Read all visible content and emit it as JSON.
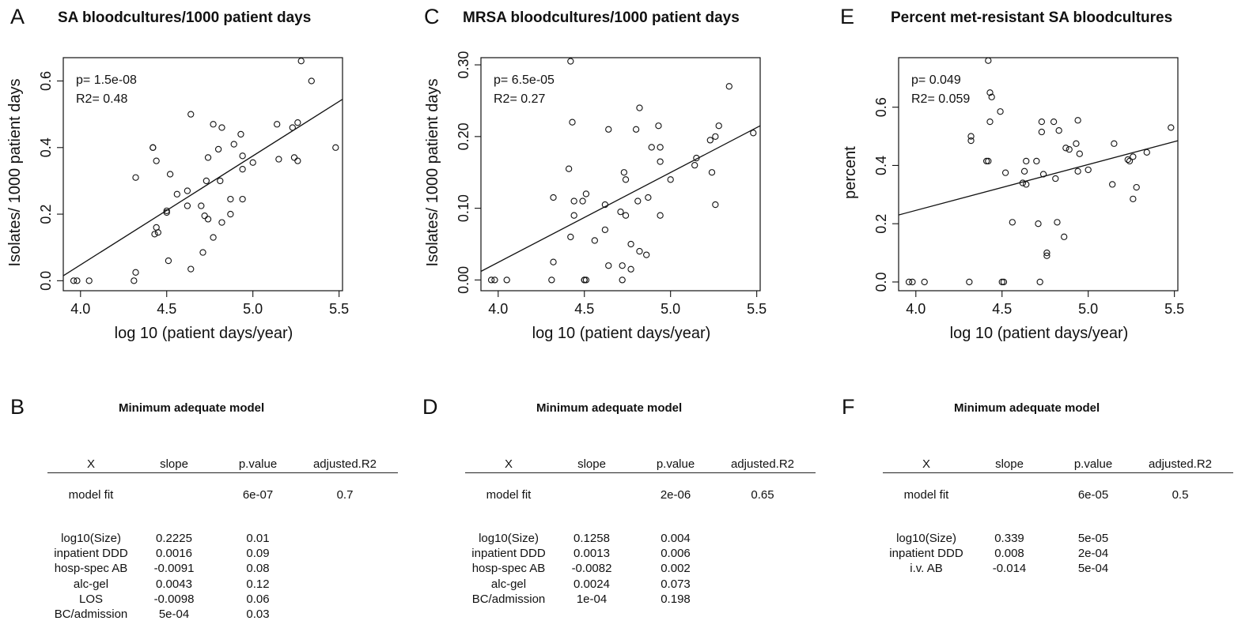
{
  "chart_data": [
    {
      "type": "scatter",
      "letter": "A",
      "title": "SA bloodcultures/1000 patient days",
      "xlabel": "log 10 (patient days/year)",
      "ylabel": "Isolates/ 1000 patient days",
      "xlim": [
        3.9,
        5.52
      ],
      "ylim": [
        -0.03,
        0.67
      ],
      "xticks": [
        "4.0",
        "4.5",
        "5.0",
        "5.5"
      ],
      "yticks": [
        "0.0",
        "0.2",
        "0.4",
        "0.6"
      ],
      "stats": [
        "p= 1.5e-08",
        "R2= 0.48"
      ],
      "line": [
        [
          3.9,
          0.015
        ],
        [
          5.52,
          0.545
        ]
      ],
      "points": [
        [
          3.96,
          0.0
        ],
        [
          3.98,
          0.0
        ],
        [
          4.05,
          0.0
        ],
        [
          4.31,
          0.0
        ],
        [
          4.32,
          0.025
        ],
        [
          4.32,
          0.31
        ],
        [
          4.42,
          0.4
        ],
        [
          4.42,
          0.4
        ],
        [
          4.43,
          0.14
        ],
        [
          4.44,
          0.36
        ],
        [
          4.44,
          0.16
        ],
        [
          4.45,
          0.145
        ],
        [
          4.5,
          0.205
        ],
        [
          4.5,
          0.21
        ],
        [
          4.51,
          0.06
        ],
        [
          4.52,
          0.32
        ],
        [
          4.56,
          0.26
        ],
        [
          4.62,
          0.225
        ],
        [
          4.62,
          0.27
        ],
        [
          4.64,
          0.5
        ],
        [
          4.64,
          0.035
        ],
        [
          4.7,
          0.225
        ],
        [
          4.71,
          0.085
        ],
        [
          4.72,
          0.195
        ],
        [
          4.73,
          0.3
        ],
        [
          4.74,
          0.185
        ],
        [
          4.74,
          0.37
        ],
        [
          4.77,
          0.13
        ],
        [
          4.77,
          0.47
        ],
        [
          4.8,
          0.395
        ],
        [
          4.81,
          0.3
        ],
        [
          4.82,
          0.175
        ],
        [
          4.82,
          0.46
        ],
        [
          4.87,
          0.2
        ],
        [
          4.87,
          0.245
        ],
        [
          4.89,
          0.41
        ],
        [
          4.93,
          0.44
        ],
        [
          4.94,
          0.375
        ],
        [
          4.94,
          0.335
        ],
        [
          4.94,
          0.245
        ],
        [
          5.0,
          0.355
        ],
        [
          5.14,
          0.47
        ],
        [
          5.15,
          0.365
        ],
        [
          5.23,
          0.46
        ],
        [
          5.24,
          0.37
        ],
        [
          5.26,
          0.36
        ],
        [
          5.26,
          0.475
        ],
        [
          5.28,
          0.66
        ],
        [
          5.34,
          0.6
        ],
        [
          5.48,
          0.4
        ]
      ]
    },
    {
      "type": "scatter",
      "letter": "C",
      "title": "MRSA bloodcultures/1000 patient days",
      "xlabel": "log 10 (patient days/year)",
      "ylabel": "Isolates/ 1000 patient days",
      "xlim": [
        3.9,
        5.52
      ],
      "ylim": [
        -0.015,
        0.31
      ],
      "xticks": [
        "4.0",
        "4.5",
        "5.0",
        "5.5"
      ],
      "yticks": [
        "0.00",
        "0.10",
        "0.20",
        "0.30"
      ],
      "stats": [
        "p=  6.5e-05",
        "R2=  0.27"
      ],
      "line": [
        [
          3.9,
          0.012
        ],
        [
          5.52,
          0.215
        ]
      ],
      "points": [
        [
          3.96,
          0.0
        ],
        [
          3.98,
          0.0
        ],
        [
          4.05,
          0.0
        ],
        [
          4.31,
          0.0
        ],
        [
          4.32,
          0.025
        ],
        [
          4.32,
          0.115
        ],
        [
          4.41,
          0.155
        ],
        [
          4.42,
          0.305
        ],
        [
          4.42,
          0.06
        ],
        [
          4.43,
          0.22
        ],
        [
          4.44,
          0.11
        ],
        [
          4.44,
          0.09
        ],
        [
          4.49,
          0.11
        ],
        [
          4.5,
          0.0
        ],
        [
          4.5,
          0.0
        ],
        [
          4.51,
          0.12
        ],
        [
          4.51,
          0.0
        ],
        [
          4.56,
          0.055
        ],
        [
          4.62,
          0.07
        ],
        [
          4.62,
          0.105
        ],
        [
          4.64,
          0.21
        ],
        [
          4.64,
          0.02
        ],
        [
          4.71,
          0.095
        ],
        [
          4.72,
          0.0
        ],
        [
          4.72,
          0.02
        ],
        [
          4.73,
          0.15
        ],
        [
          4.74,
          0.09
        ],
        [
          4.74,
          0.14
        ],
        [
          4.77,
          0.05
        ],
        [
          4.77,
          0.015
        ],
        [
          4.8,
          0.21
        ],
        [
          4.81,
          0.11
        ],
        [
          4.82,
          0.04
        ],
        [
          4.82,
          0.24
        ],
        [
          4.86,
          0.035
        ],
        [
          4.87,
          0.115
        ],
        [
          4.89,
          0.185
        ],
        [
          4.93,
          0.215
        ],
        [
          4.94,
          0.185
        ],
        [
          4.94,
          0.165
        ],
        [
          4.94,
          0.09
        ],
        [
          5.0,
          0.14
        ],
        [
          5.14,
          0.16
        ],
        [
          5.15,
          0.17
        ],
        [
          5.23,
          0.195
        ],
        [
          5.24,
          0.15
        ],
        [
          5.26,
          0.105
        ],
        [
          5.26,
          0.2
        ],
        [
          5.28,
          0.215
        ],
        [
          5.34,
          0.27
        ],
        [
          5.48,
          0.205
        ]
      ]
    },
    {
      "type": "scatter",
      "letter": "E",
      "title": "Percent met-resistant SA bloodcultures",
      "xlabel": "log 10 (patient days/year)",
      "ylabel": "percent",
      "xlim": [
        3.9,
        5.52
      ],
      "ylim": [
        -0.03,
        0.77
      ],
      "xticks": [
        "4.0",
        "4.5",
        "5.0",
        "5.5"
      ],
      "yticks": [
        "0.0",
        "0.2",
        "0.4",
        "0.6"
      ],
      "stats": [
        "p=  0.049",
        "R2=  0.059"
      ],
      "line": [
        [
          3.9,
          0.23
        ],
        [
          5.52,
          0.485
        ]
      ],
      "points": [
        [
          3.96,
          0.0
        ],
        [
          3.98,
          0.0
        ],
        [
          4.05,
          0.0
        ],
        [
          4.31,
          0.0
        ],
        [
          4.32,
          0.5
        ],
        [
          4.32,
          0.485
        ],
        [
          4.41,
          0.415
        ],
        [
          4.42,
          0.415
        ],
        [
          4.42,
          0.76
        ],
        [
          4.43,
          0.55
        ],
        [
          4.43,
          0.65
        ],
        [
          4.44,
          0.635
        ],
        [
          4.49,
          0.585
        ],
        [
          4.5,
          0.0
        ],
        [
          4.51,
          0.0
        ],
        [
          4.52,
          0.375
        ],
        [
          4.56,
          0.205
        ],
        [
          4.62,
          0.34
        ],
        [
          4.63,
          0.38
        ],
        [
          4.64,
          0.415
        ],
        [
          4.64,
          0.335
        ],
        [
          4.7,
          0.415
        ],
        [
          4.71,
          0.2
        ],
        [
          4.72,
          0.0
        ],
        [
          4.73,
          0.515
        ],
        [
          4.73,
          0.55
        ],
        [
          4.74,
          0.37
        ],
        [
          4.76,
          0.1
        ],
        [
          4.76,
          0.09
        ],
        [
          4.8,
          0.55
        ],
        [
          4.81,
          0.355
        ],
        [
          4.82,
          0.205
        ],
        [
          4.83,
          0.52
        ],
        [
          4.86,
          0.155
        ],
        [
          4.87,
          0.46
        ],
        [
          4.89,
          0.455
        ],
        [
          4.93,
          0.475
        ],
        [
          4.94,
          0.555
        ],
        [
          4.94,
          0.38
        ],
        [
          4.95,
          0.44
        ],
        [
          5.0,
          0.385
        ],
        [
          5.14,
          0.335
        ],
        [
          5.15,
          0.475
        ],
        [
          5.23,
          0.42
        ],
        [
          5.24,
          0.415
        ],
        [
          5.26,
          0.285
        ],
        [
          5.26,
          0.43
        ],
        [
          5.28,
          0.325
        ],
        [
          5.34,
          0.445
        ],
        [
          5.48,
          0.53
        ]
      ]
    }
  ],
  "tables": [
    {
      "letter": "B",
      "title": "Minimum adequate model",
      "headers": [
        "X",
        "slope",
        "p.value",
        "adjusted.R2"
      ],
      "fit": {
        "label": "model fit",
        "slope": "",
        "p": "6e-07",
        "r2": "0.7"
      },
      "rows": [
        {
          "x": "log10(Size)",
          "slope": "0.2225",
          "p": "0.01"
        },
        {
          "x": "inpatient DDD",
          "slope": "0.0016",
          "p": "0.09"
        },
        {
          "x": "hosp-spec AB",
          "slope": "-0.0091",
          "p": "0.08"
        },
        {
          "x": "alc-gel",
          "slope": "0.0043",
          "p": "0.12"
        },
        {
          "x": "LOS",
          "slope": "-0.0098",
          "p": "0.06"
        },
        {
          "x": "BC/admission",
          "slope": "5e-04",
          "p": "0.03"
        }
      ]
    },
    {
      "letter": "D",
      "title": "Minimum adequate model",
      "headers": [
        "X",
        "slope",
        "p.value",
        "adjusted.R2"
      ],
      "fit": {
        "label": "model fit",
        "slope": "",
        "p": "2e-06",
        "r2": "0.65"
      },
      "rows": [
        {
          "x": "log10(Size)",
          "slope": "0.1258",
          "p": "0.004"
        },
        {
          "x": "inpatient DDD",
          "slope": "0.0013",
          "p": "0.006"
        },
        {
          "x": "hosp-spec AB",
          "slope": "-0.0082",
          "p": "0.002"
        },
        {
          "x": "alc-gel",
          "slope": "0.0024",
          "p": "0.073"
        },
        {
          "x": "BC/admission",
          "slope": "1e-04",
          "p": "0.198"
        }
      ]
    },
    {
      "letter": "F",
      "title": "Minimum adequate model",
      "headers": [
        "X",
        "slope",
        "p.value",
        "adjusted.R2"
      ],
      "fit": {
        "label": "model fit",
        "slope": "",
        "p": "6e-05",
        "r2": "0.5"
      },
      "rows": [
        {
          "x": "log10(Size)",
          "slope": "0.339",
          "p": "5e-05"
        },
        {
          "x": "inpatient DDD",
          "slope": "0.008",
          "p": "2e-04"
        },
        {
          "x": "i.v. AB",
          "slope": "-0.014",
          "p": "5e-04"
        }
      ]
    }
  ]
}
